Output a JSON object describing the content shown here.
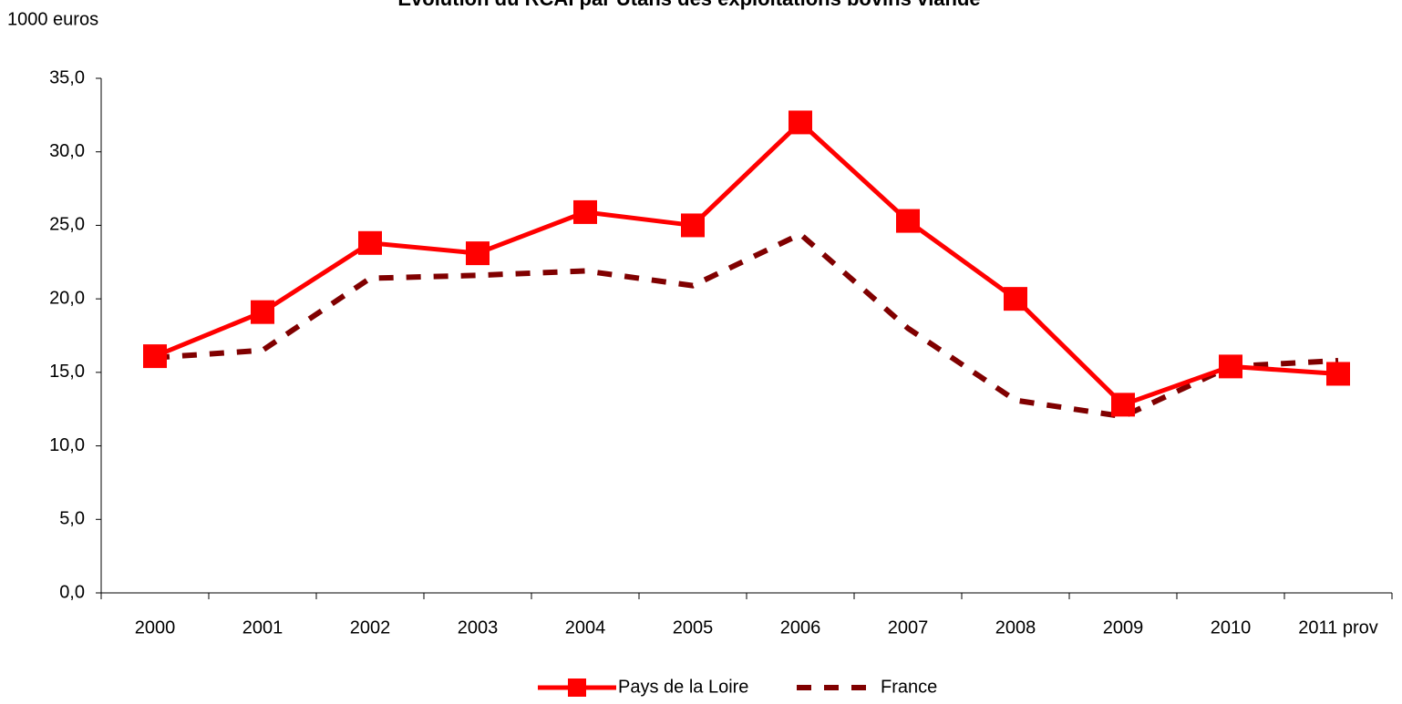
{
  "chart_data": {
    "type": "line",
    "title": "Evolution du RCAI par Utans des exploitations bovins viande",
    "y_axis_label": "1000 euros",
    "categories": [
      "2000",
      "2001",
      "2002",
      "2003",
      "2004",
      "2005",
      "2006",
      "2007",
      "2008",
      "2009",
      "2010",
      "2011 prov"
    ],
    "series": [
      {
        "name": "Pays de la Loire",
        "color": "#ff0000",
        "values": [
          16.1,
          19.1,
          23.8,
          23.1,
          25.9,
          25.0,
          32.0,
          25.3,
          20.0,
          12.8,
          15.4,
          14.9
        ]
      },
      {
        "name": "France",
        "color": "#800000",
        "values": [
          16.0,
          16.5,
          21.4,
          21.6,
          21.9,
          20.9,
          24.4,
          18.0,
          13.1,
          12.0,
          15.4,
          15.8
        ]
      }
    ],
    "ylim": [
      0,
      35
    ],
    "yticks": [
      {
        "value": 0,
        "label": "0,0"
      },
      {
        "value": 5,
        "label": "5,0"
      },
      {
        "value": 10,
        "label": "10,0"
      },
      {
        "value": 15,
        "label": "15,0"
      },
      {
        "value": 20,
        "label": "20,0"
      },
      {
        "value": 25,
        "label": "25,0"
      },
      {
        "value": 30,
        "label": "30,0"
      },
      {
        "value": 35,
        "label": "35,0"
      }
    ],
    "legend": "bottom"
  }
}
